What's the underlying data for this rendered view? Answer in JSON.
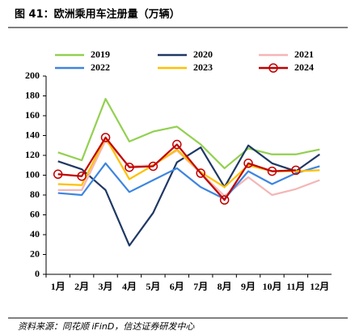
{
  "chart_data": {
    "type": "line",
    "title": "图 41：欧洲乘用车注册量（万辆）",
    "source": "资料来源：同花顺 iFinD，信达证券研发中心",
    "categories": [
      "1月",
      "2月",
      "3月",
      "4月",
      "5月",
      "6月",
      "7月",
      "8月",
      "9月",
      "10月",
      "11月",
      "12月"
    ],
    "series": [
      {
        "name": "2019",
        "color": "#92d050",
        "values": [
          123,
          115,
          177,
          134,
          144,
          149,
          131,
          107,
          127,
          121,
          121,
          126
        ]
      },
      {
        "name": "2020",
        "color": "#1f3864",
        "values": [
          114,
          106,
          85,
          29,
          62,
          113,
          128,
          88,
          130,
          112,
          104,
          121
        ]
      },
      {
        "name": "2021",
        "color": "#f4b6b6",
        "values": [
          85,
          85,
          135,
          109,
          110,
          125,
          102,
          79,
          98,
          80,
          86,
          95
        ]
      },
      {
        "name": "2022",
        "color": "#3d85e0",
        "values": [
          82,
          80,
          112,
          83,
          95,
          107,
          88,
          76,
          104,
          91,
          102,
          109
        ]
      },
      {
        "name": "2023",
        "color": "#ffc000",
        "values": [
          91,
          90,
          138,
          96,
          110,
          126,
          103,
          88,
          110,
          104,
          104,
          105
        ]
      },
      {
        "name": "2024",
        "color": "#c00000",
        "marker": "circle",
        "values": [
          101,
          99,
          138,
          108,
          109,
          131,
          102,
          75,
          112,
          104,
          105,
          null
        ]
      }
    ],
    "ylim": [
      0,
      200
    ],
    "yticks": [
      0,
      20,
      40,
      60,
      80,
      100,
      120,
      140,
      160,
      180,
      200
    ],
    "legend": "top"
  }
}
